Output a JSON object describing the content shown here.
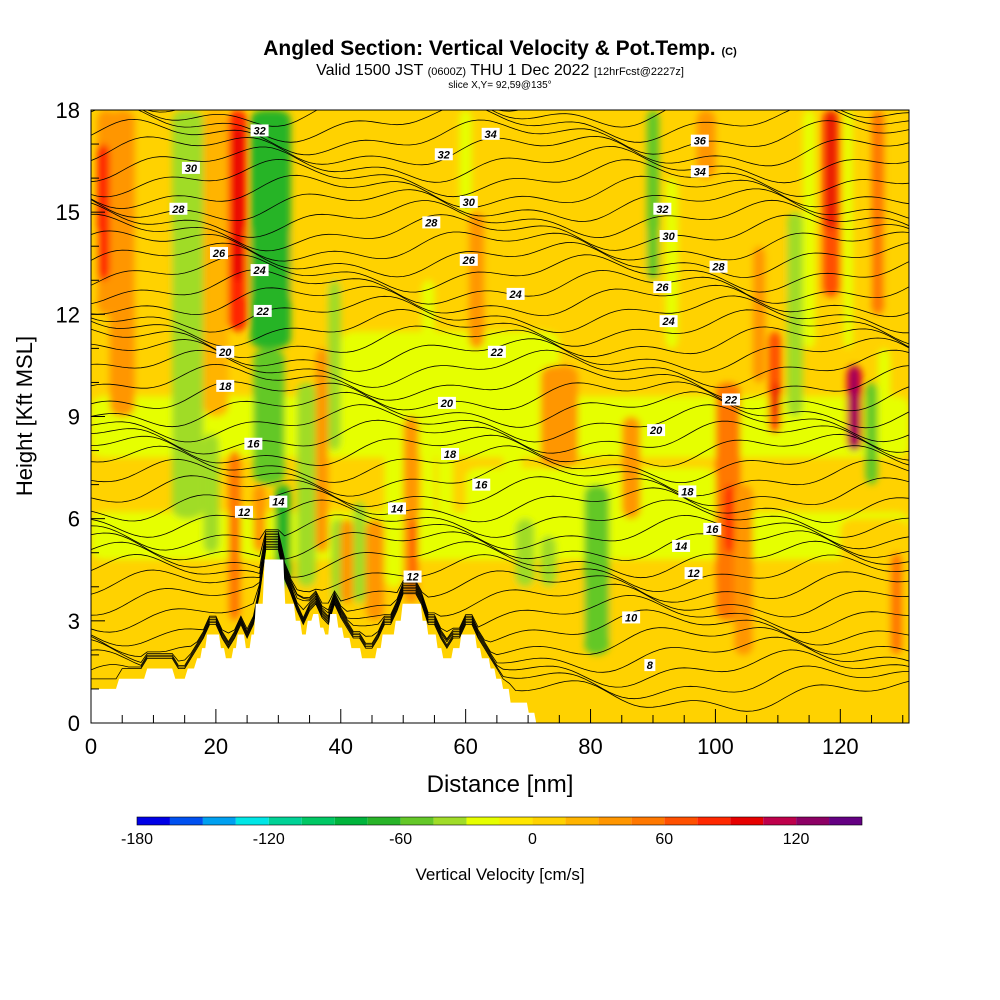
{
  "header": {
    "title_main": "Angled Section: Vertical Velocity & Pot.Temp.",
    "title_mark": "(C)",
    "valid_a": "Valid 1500 JST",
    "valid_b": "(0600Z)",
    "valid_c": "THU 1 Dec 2022",
    "valid_d": "[12hrFcst@2227z]",
    "slice": "slice X,Y= 92,59@135°"
  },
  "chart_data": {
    "type": "heatmap",
    "title": "Angled Section: Vertical Velocity & Pot.Temp.",
    "xlabel": "Distance [nm]",
    "ylabel": "Height [Kft MSL]",
    "xlim": [
      0,
      131
    ],
    "ylim": [
      0,
      18
    ],
    "x_ticks": [
      "0",
      "20",
      "40",
      "60",
      "80",
      "100",
      "120"
    ],
    "y_ticks": [
      "0",
      "3",
      "6",
      "9",
      "12",
      "15",
      "18"
    ],
    "colorbar": {
      "label": "Vertical Velocity [cm/s]",
      "tick_labels": [
        "-180",
        "-120",
        "-60",
        "0",
        "60",
        "120"
      ],
      "levels": [
        -180,
        -165,
        -150,
        -135,
        -120,
        -105,
        -90,
        -75,
        -60,
        -45,
        -30,
        -15,
        0,
        15,
        30,
        45,
        60,
        75,
        90,
        105,
        120,
        135,
        150
      ],
      "colors": [
        "#0000e6",
        "#0050f0",
        "#00a0f0",
        "#00e6e6",
        "#00d296",
        "#00c864",
        "#00b43c",
        "#28b428",
        "#64c828",
        "#a0dc28",
        "#e6ff00",
        "#ffe600",
        "#ffd200",
        "#ffb400",
        "#ff9600",
        "#ff7800",
        "#ff5000",
        "#ff2800",
        "#e60000",
        "#be004b",
        "#8c0064",
        "#640082"
      ]
    },
    "contour_field": "Potential Temperature (C)",
    "contour_labels": [
      {
        "value": "32",
        "x": 27,
        "y": 17.4
      },
      {
        "value": "30",
        "x": 16,
        "y": 16.3
      },
      {
        "value": "28",
        "x": 14,
        "y": 15.1
      },
      {
        "value": "26",
        "x": 20.5,
        "y": 13.8
      },
      {
        "value": "24",
        "x": 27,
        "y": 13.3
      },
      {
        "value": "22",
        "x": 27.5,
        "y": 12.1
      },
      {
        "value": "20",
        "x": 21.5,
        "y": 10.9
      },
      {
        "value": "18",
        "x": 21.5,
        "y": 9.9
      },
      {
        "value": "16",
        "x": 26,
        "y": 8.2
      },
      {
        "value": "14",
        "x": 30,
        "y": 6.5
      },
      {
        "value": "12",
        "x": 24.5,
        "y": 6.2
      },
      {
        "value": "34",
        "x": 64,
        "y": 17.3
      },
      {
        "value": "32",
        "x": 56.5,
        "y": 16.7
      },
      {
        "value": "30",
        "x": 60.5,
        "y": 15.3
      },
      {
        "value": "28",
        "x": 54.5,
        "y": 14.7
      },
      {
        "value": "26",
        "x": 60.5,
        "y": 13.6
      },
      {
        "value": "24",
        "x": 68,
        "y": 12.6
      },
      {
        "value": "22",
        "x": 65,
        "y": 10.9
      },
      {
        "value": "20",
        "x": 57,
        "y": 9.4
      },
      {
        "value": "18",
        "x": 57.5,
        "y": 7.9
      },
      {
        "value": "16",
        "x": 62.5,
        "y": 7.0
      },
      {
        "value": "14",
        "x": 49,
        "y": 6.3
      },
      {
        "value": "12",
        "x": 51.5,
        "y": 4.3
      },
      {
        "value": "36",
        "x": 97.5,
        "y": 17.1
      },
      {
        "value": "34",
        "x": 97.5,
        "y": 16.2
      },
      {
        "value": "32",
        "x": 91.5,
        "y": 15.1
      },
      {
        "value": "30",
        "x": 92.5,
        "y": 14.3
      },
      {
        "value": "28",
        "x": 100.5,
        "y": 13.4
      },
      {
        "value": "26",
        "x": 91.5,
        "y": 12.8
      },
      {
        "value": "24",
        "x": 92.5,
        "y": 11.8
      },
      {
        "value": "22",
        "x": 102.5,
        "y": 9.5
      },
      {
        "value": "20",
        "x": 90.5,
        "y": 8.6
      },
      {
        "value": "18",
        "x": 95.5,
        "y": 6.8
      },
      {
        "value": "16",
        "x": 99.5,
        "y": 5.7
      },
      {
        "value": "14",
        "x": 94.5,
        "y": 5.2
      },
      {
        "value": "12",
        "x": 96.5,
        "y": 4.4
      },
      {
        "value": "10",
        "x": 86.5,
        "y": 3.1
      },
      {
        "value": "8",
        "x": 89.5,
        "y": 1.7
      }
    ],
    "terrain_profile": [
      [
        0,
        1.0
      ],
      [
        4,
        1.0
      ],
      [
        4.5,
        1.3
      ],
      [
        8.5,
        1.3
      ],
      [
        9,
        1.6
      ],
      [
        13,
        1.6
      ],
      [
        13.5,
        1.3
      ],
      [
        15,
        1.3
      ],
      [
        15.5,
        1.6
      ],
      [
        16.5,
        1.6
      ],
      [
        17,
        1.9
      ],
      [
        17.5,
        1.9
      ],
      [
        17.8,
        2.2
      ],
      [
        18.3,
        2.2
      ],
      [
        18.6,
        2.6
      ],
      [
        20.5,
        2.6
      ],
      [
        20.8,
        2.2
      ],
      [
        21.3,
        2.2
      ],
      [
        21.6,
        1.9
      ],
      [
        22.5,
        1.9
      ],
      [
        22.8,
        2.2
      ],
      [
        23.2,
        2.2
      ],
      [
        23.5,
        2.6
      ],
      [
        24.5,
        2.6
      ],
      [
        24.8,
        2.2
      ],
      [
        25.4,
        2.2
      ],
      [
        25.7,
        2.6
      ],
      [
        26.1,
        2.6
      ],
      [
        26.4,
        3.5
      ],
      [
        27.5,
        3.5
      ],
      [
        27.8,
        4.8
      ],
      [
        30.8,
        4.8
      ],
      [
        31.1,
        3.5
      ],
      [
        32.5,
        3.5
      ],
      [
        32.8,
        3.0
      ],
      [
        33.5,
        3.0
      ],
      [
        33.8,
        2.6
      ],
      [
        34.4,
        2.6
      ],
      [
        34.7,
        3.0
      ],
      [
        35.3,
        3.0
      ],
      [
        35.6,
        3.2
      ],
      [
        36.4,
        3.2
      ],
      [
        36.7,
        2.8
      ],
      [
        37.2,
        2.8
      ],
      [
        37.5,
        2.6
      ],
      [
        38,
        2.6
      ],
      [
        38.3,
        3.2
      ],
      [
        39.3,
        3.2
      ],
      [
        39.6,
        2.8
      ],
      [
        40.2,
        2.8
      ],
      [
        40.5,
        2.5
      ],
      [
        41.4,
        2.5
      ],
      [
        41.7,
        2.2
      ],
      [
        43.1,
        2.2
      ],
      [
        43.4,
        1.9
      ],
      [
        45.5,
        1.9
      ],
      [
        45.8,
        2.2
      ],
      [
        46.4,
        2.2
      ],
      [
        46.7,
        2.6
      ],
      [
        48.5,
        2.6
      ],
      [
        48.8,
        3.0
      ],
      [
        49.6,
        3.0
      ],
      [
        49.9,
        3.5
      ],
      [
        52.8,
        3.5
      ],
      [
        53.1,
        3.0
      ],
      [
        53.7,
        3.0
      ],
      [
        54,
        2.6
      ],
      [
        55.2,
        2.6
      ],
      [
        55.5,
        2.2
      ],
      [
        56.1,
        2.2
      ],
      [
        56.4,
        1.9
      ],
      [
        57.7,
        1.9
      ],
      [
        58,
        2.2
      ],
      [
        59,
        2.2
      ],
      [
        59.3,
        2.6
      ],
      [
        61.5,
        2.6
      ],
      [
        61.8,
        2.2
      ],
      [
        62.3,
        2.2
      ],
      [
        62.6,
        1.9
      ],
      [
        63.7,
        1.9
      ],
      [
        64,
        1.6
      ],
      [
        64.6,
        1.6
      ],
      [
        64.9,
        1.3
      ],
      [
        65.7,
        1.3
      ],
      [
        66,
        1.0
      ],
      [
        66.9,
        1.0
      ],
      [
        67.2,
        0.6
      ],
      [
        69.8,
        0.6
      ],
      [
        70.1,
        0.3
      ],
      [
        71,
        0.3
      ],
      [
        71.3,
        0
      ],
      [
        131,
        0
      ]
    ]
  }
}
